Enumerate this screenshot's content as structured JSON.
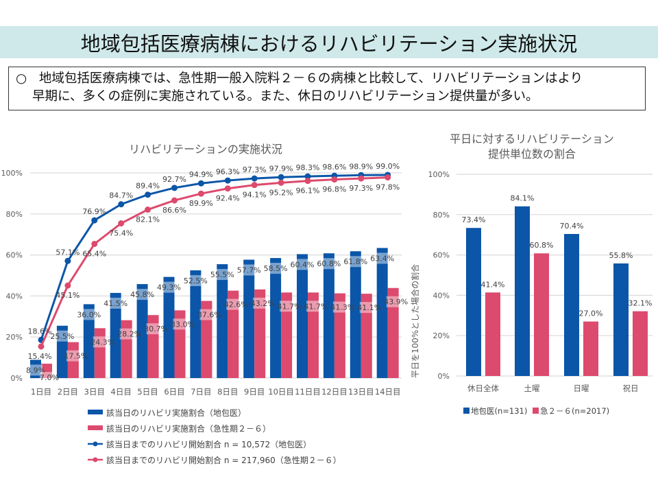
{
  "page": {
    "title": "地域包括医療病棟におけるリハビリテーション実施状況",
    "summary_bullet": "○",
    "summary_line1": "地域包括医療病棟では、急性期一般入院料２－６の病棟と比較して、リハビリテーションはより",
    "summary_line2": "早期に、多くの症例に実施されている。また、休日のリハビリテーション提供量が多い。"
  },
  "colors": {
    "blue": "#0b56a8",
    "pink": "#dc4a6d",
    "grid": "#d9d9d9",
    "axis_text": "#595959",
    "title_band": "#cfe9ea"
  },
  "chart_data": [
    {
      "type": "bar+line",
      "title": "リハビリテーションの実施状況",
      "xlabel": "",
      "ylabel": "",
      "ylim": [
        0,
        100
      ],
      "yticks": [
        "0%",
        "20%",
        "40%",
        "60%",
        "80%",
        "100%"
      ],
      "ytick_values": [
        0,
        20,
        40,
        60,
        80,
        100
      ],
      "grid": true,
      "legend_position": "bottom",
      "categories": [
        "1日目",
        "2日目",
        "3日目",
        "4日目",
        "5日目",
        "6日目",
        "7日目",
        "8日目",
        "9日目",
        "10日目",
        "11日目",
        "12日目",
        "13日目",
        "14日目"
      ],
      "series": [
        {
          "name": "該当日のリハビリ実施割合（地包医）",
          "kind": "bar",
          "color": "#0b56a8",
          "values": [
            8.9,
            25.5,
            36.0,
            41.5,
            45.8,
            49.3,
            52.5,
            55.5,
            57.7,
            58.5,
            60.4,
            60.8,
            61.8,
            63.4
          ],
          "labels": [
            "8.9%",
            "25.5%",
            "36.0%",
            "41.5%",
            "45.8%",
            "49.3%",
            "52.5%",
            "55.5%",
            "57.7%",
            "58.5%",
            "60.4%",
            "60.8%",
            "61.8%",
            "63.4%"
          ]
        },
        {
          "name": "該当日のリハビリ実施割合（急性期２－６）",
          "kind": "bar",
          "color": "#dc4a6d",
          "values": [
            7.0,
            17.5,
            24.3,
            28.2,
            30.7,
            33.0,
            37.6,
            42.6,
            43.2,
            41.7,
            41.7,
            41.3,
            41.1,
            43.9
          ],
          "labels": [
            "7.0%",
            "17.5%",
            "24.3%",
            "28.2%",
            "30.7%",
            "33.0%",
            "37.6%",
            "42.6%",
            "43.2%",
            "41.7%",
            "41.7%",
            "41.3%",
            "41.1%",
            "43.9%"
          ]
        },
        {
          "name": "該当日までのリハビリ開始割合 n = 10,572（地包医）",
          "kind": "line",
          "color": "#0b56a8",
          "values": [
            18.6,
            57.1,
            76.9,
            84.7,
            89.4,
            92.7,
            94.9,
            96.3,
            97.3,
            97.9,
            98.3,
            98.6,
            98.9,
            99.0
          ],
          "labels": [
            "18.6%",
            "57.1%",
            "76.9%",
            "84.7%",
            "89.4%",
            "92.7%",
            "94.9%",
            "96.3%",
            "97.3%",
            "97.9%",
            "98.3%",
            "98.6%",
            "98.9%",
            "99.0%"
          ]
        },
        {
          "name": "該当日までのリハビリ開始割合 n = 217,960（急性期２－６）",
          "kind": "line",
          "color": "#dc4a6d",
          "values": [
            15.4,
            45.1,
            65.4,
            75.4,
            82.1,
            86.6,
            89.9,
            92.4,
            94.1,
            95.2,
            96.1,
            96.8,
            97.3,
            97.8
          ],
          "labels": [
            "15.4%",
            "45.1%",
            "65.4%",
            "75.4%",
            "82.1%",
            "86.6%",
            "89.9%",
            "92.4%",
            "94.1%",
            "95.2%",
            "96.1%",
            "96.8%",
            "97.3%",
            "97.8%"
          ]
        }
      ]
    },
    {
      "type": "bar",
      "title_line1": "平日に対するリハビリテーション",
      "title_line2": "提供単位数の割合",
      "xlabel": "",
      "ylabel": "平日を100%とした場合の割合",
      "ylim": [
        0,
        100
      ],
      "yticks": [
        "0%",
        "20%",
        "40%",
        "60%",
        "80%",
        "100%"
      ],
      "ytick_values": [
        0,
        20,
        40,
        60,
        80,
        100
      ],
      "grid": true,
      "legend_position": "bottom",
      "categories": [
        "休日全体",
        "土曜",
        "日曜",
        "祝日"
      ],
      "series": [
        {
          "name": "地包医(n=131)",
          "color": "#0b56a8",
          "values": [
            73.4,
            84.1,
            70.4,
            55.8
          ],
          "labels": [
            "73.4%",
            "84.1%",
            "70.4%",
            "55.8%"
          ]
        },
        {
          "name": "急２－６(n=2017)",
          "color": "#dc4a6d",
          "values": [
            41.4,
            60.8,
            27.0,
            32.1
          ],
          "labels": [
            "41.4%",
            "60.8%",
            "27.0%",
            "32.1%"
          ]
        }
      ]
    }
  ]
}
